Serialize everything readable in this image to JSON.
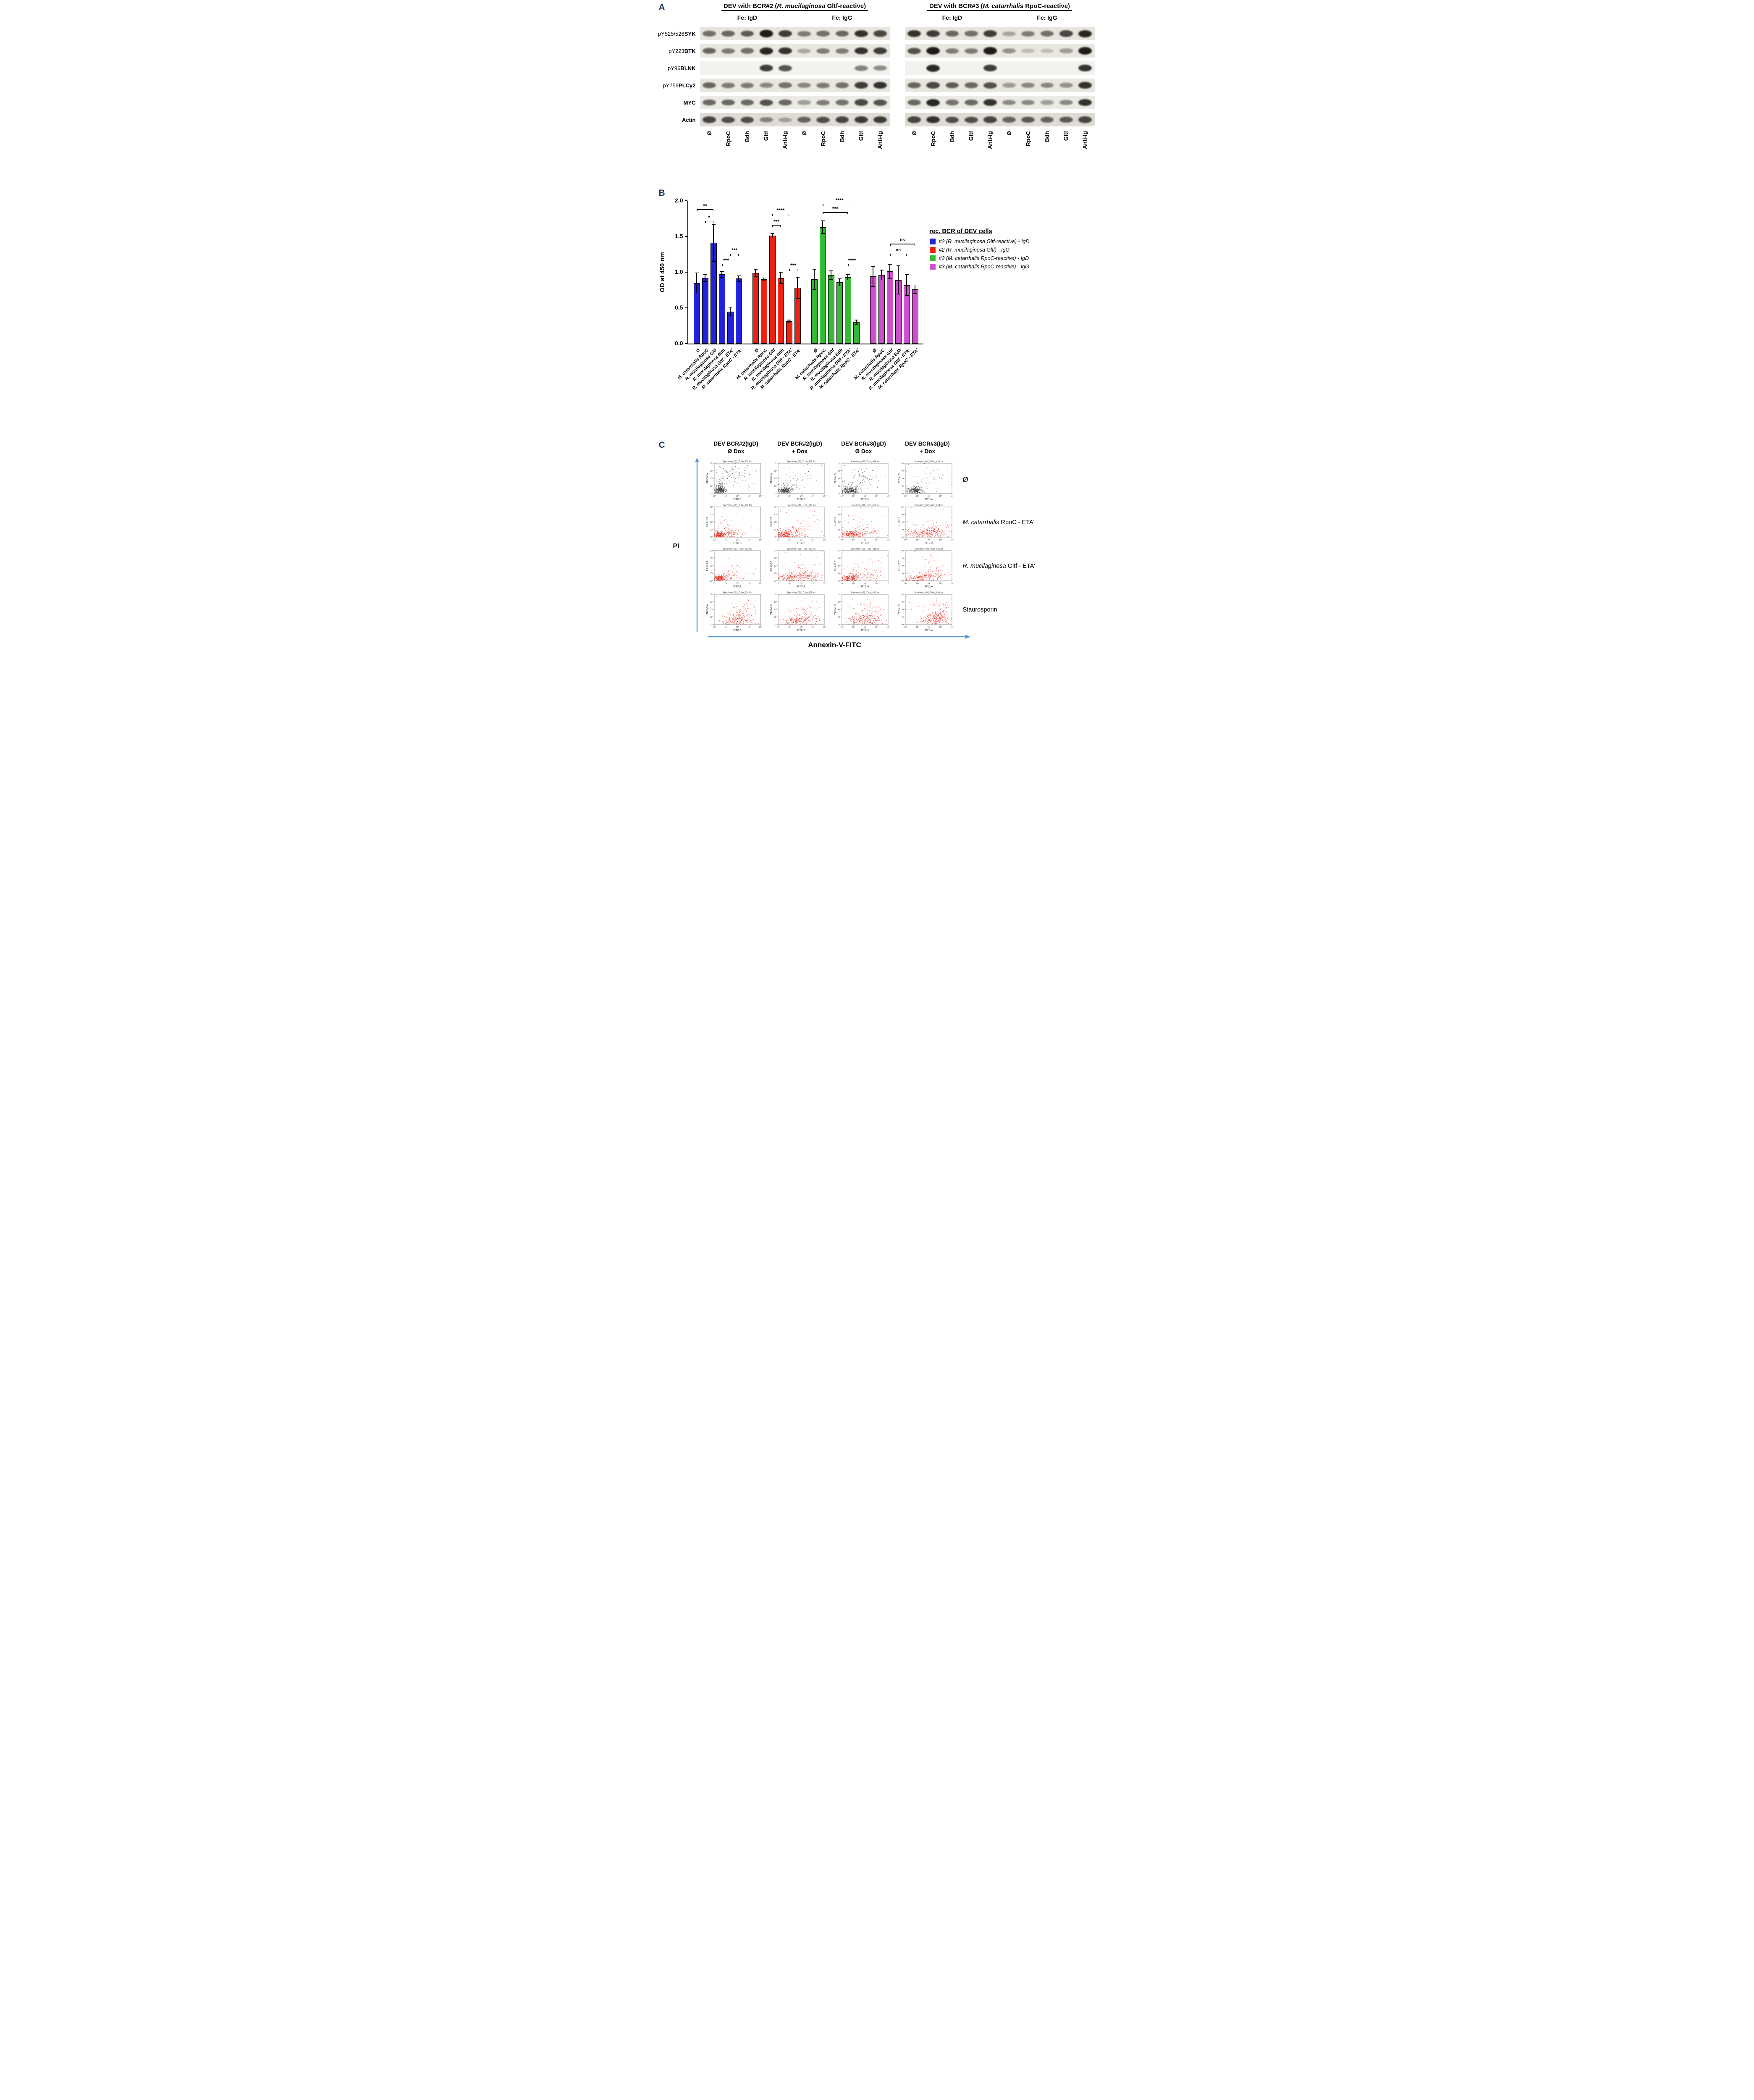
{
  "panelA": {
    "label": "A",
    "groups": [
      {
        "title_pre": "DEV with BCR#2 (",
        "title_italic": "R. mucilaginosa",
        "title_post": " Gltf-reactive)",
        "fc_labels": [
          "Fc: IgD",
          "Fc: IgG"
        ]
      },
      {
        "title_pre": "DEV with BCR#3 (",
        "title_italic": "M. catarrhalis",
        "title_post": " RpoC-reactive)",
        "fc_labels": [
          "Fc: IgD",
          "Fc: IgG"
        ]
      }
    ],
    "lane_labels": [
      "Ø",
      "RpoC",
      "Bdh",
      "Gltf",
      "Anti-Ig"
    ],
    "rows": [
      {
        "prefix": "pY525/526 ",
        "name": "SYK",
        "bg": "#e8e5df",
        "g1": [
          0.55,
          0.6,
          0.65,
          0.95,
          0.8,
          0.5,
          0.55,
          0.6,
          0.85,
          0.75
        ],
        "g2": [
          0.85,
          0.8,
          0.6,
          0.55,
          0.8,
          0.3,
          0.5,
          0.55,
          0.75,
          0.9
        ]
      },
      {
        "prefix": "pY223 ",
        "name": "BTK",
        "bg": "#eae7e1",
        "g1": [
          0.6,
          0.5,
          0.55,
          0.9,
          0.85,
          0.3,
          0.5,
          0.5,
          0.85,
          0.8
        ],
        "g2": [
          0.7,
          0.95,
          0.5,
          0.5,
          0.95,
          0.4,
          0.2,
          0.2,
          0.35,
          0.95
        ]
      },
      {
        "prefix": "pY96 ",
        "name": "BLNK",
        "bg": "#f3f2ef",
        "g1": [
          0,
          0,
          0,
          0.8,
          0.7,
          0,
          0,
          0,
          0.5,
          0.45
        ],
        "g2": [
          0,
          0.9,
          0,
          0,
          0.8,
          0,
          0,
          0,
          0,
          0.85
        ]
      },
      {
        "prefix": "pY759 ",
        "name": "PLCγ2",
        "bg": "#e9e6e0",
        "g1": [
          0.6,
          0.5,
          0.5,
          0.45,
          0.55,
          0.45,
          0.5,
          0.55,
          0.8,
          0.85
        ],
        "g2": [
          0.6,
          0.75,
          0.65,
          0.6,
          0.7,
          0.35,
          0.45,
          0.45,
          0.4,
          0.85
        ]
      },
      {
        "prefix": "",
        "name": "MYC",
        "bg": "#eceae4",
        "g1": [
          0.6,
          0.6,
          0.6,
          0.7,
          0.6,
          0.35,
          0.5,
          0.55,
          0.75,
          0.7
        ],
        "g2": [
          0.6,
          0.9,
          0.55,
          0.6,
          0.85,
          0.45,
          0.45,
          0.35,
          0.45,
          0.85
        ]
      },
      {
        "prefix": "",
        "name": "Actin",
        "bg": "#dfdcd5",
        "g1": [
          0.75,
          0.7,
          0.7,
          0.45,
          0.3,
          0.6,
          0.7,
          0.75,
          0.8,
          0.8
        ],
        "g2": [
          0.75,
          0.85,
          0.7,
          0.7,
          0.75,
          0.6,
          0.65,
          0.6,
          0.65,
          0.75
        ]
      }
    ]
  },
  "panelB": {
    "label": "B"
  },
  "panelC": {
    "label": "C"
  },
  "chart_data": [
    {
      "type": "bar",
      "title": "",
      "ylabel": "OD at 450 nm",
      "ylim": [
        0,
        2.0
      ],
      "yticks": [
        0,
        0.5,
        1.0,
        1.5,
        2.0
      ],
      "categories": [
        "Ø",
        "M. catarrhalis RpoC",
        "R. mucilaginosa Gltf",
        "R. mucilaginosa Bdh",
        "R. mucilaginosa Gltf - ETA'",
        "M. catarrhalis RpoC - ETA'"
      ],
      "legend_title": "rec. BCR  of DEV cells",
      "legend_position": "right",
      "grid": false,
      "series": [
        {
          "name": "#2 (R. mucilaginosa Gltf-reactive) - IgD",
          "color": "#2222dd",
          "values": [
            0.85,
            0.92,
            1.41,
            0.97,
            0.45,
            0.91
          ],
          "errors": [
            0.14,
            0.05,
            0.26,
            0.04,
            0.06,
            0.04
          ]
        },
        {
          "name": "#2 (R. mucilaginosa Gltf) - IgG",
          "color": "#ee2211",
          "values": [
            0.99,
            0.9,
            1.51,
            0.92,
            0.31,
            0.78
          ],
          "errors": [
            0.05,
            0.02,
            0.03,
            0.08,
            0.02,
            0.15
          ]
        },
        {
          "name": "#3 (M. catarrhalis RpoC-reactive)  - IgD",
          "color": "#33bb33",
          "values": [
            0.9,
            1.63,
            0.96,
            0.86,
            0.93,
            0.3
          ],
          "errors": [
            0.14,
            0.09,
            0.06,
            0.05,
            0.04,
            0.03
          ]
        },
        {
          "name": "#3 (M. catarrhalis RpoC-reactive)  - IgG",
          "color": "#cc4fcc",
          "values": [
            0.94,
            0.96,
            1.01,
            0.89,
            0.82,
            0.76
          ],
          "errors": [
            0.14,
            0.07,
            0.1,
            0.2,
            0.15,
            0.06
          ]
        }
      ],
      "annotations": [
        {
          "g": 0,
          "i1": 1,
          "i2": 2,
          "y": 1.72,
          "t": "*"
        },
        {
          "g": 0,
          "i1": 0,
          "i2": 2,
          "y": 1.88,
          "t": "**"
        },
        {
          "g": 0,
          "i1": 3,
          "i2": 4,
          "y": 1.12,
          "t": "***"
        },
        {
          "g": 0,
          "i1": 4,
          "i2": 5,
          "y": 1.26,
          "t": "***"
        },
        {
          "g": 1,
          "i1": 2,
          "i2": 3,
          "y": 1.66,
          "t": "***"
        },
        {
          "g": 1,
          "i1": 2,
          "i2": 4,
          "y": 1.82,
          "t": "****"
        },
        {
          "g": 1,
          "i1": 4,
          "i2": 5,
          "y": 1.05,
          "t": "***"
        },
        {
          "g": 2,
          "i1": 1,
          "i2": 4,
          "y": 1.84,
          "t": "***"
        },
        {
          "g": 2,
          "i1": 1,
          "i2": 5,
          "y": 1.96,
          "t": "****"
        },
        {
          "g": 2,
          "i1": 4,
          "i2": 5,
          "y": 1.12,
          "t": "****"
        },
        {
          "g": 3,
          "i1": 2,
          "i2": 4,
          "y": 1.26,
          "t": "ns"
        },
        {
          "g": 3,
          "i1": 2,
          "i2": 5,
          "y": 1.4,
          "t": "ns"
        }
      ]
    },
    {
      "type": "scatter",
      "col_headers": [
        {
          "l1": "DEV BCR#2(IgD)",
          "l2": "Ø Dox"
        },
        {
          "l1": "DEV BCR#2(IgD)",
          "l2": "+ Dox"
        },
        {
          "l1": "DEV BCR#3(IgD)",
          "l2": "Ø Dox"
        },
        {
          "l1": "DEV BCR#3(IgD)",
          "l2": "+ Dox"
        }
      ],
      "row_labels": [
        {
          "it": "",
          "rest": "Ø"
        },
        {
          "it": "M. catarrhalis",
          "rest": " RpoC - ETA'"
        },
        {
          "it": "R. mucilaginosa",
          "rest": " Gltf - ETA'"
        },
        {
          "it": "",
          "rest": "Staurosporin"
        }
      ],
      "x_axis_label": "Annexin-V-FITC",
      "y_axis_label": "PI",
      "sub_x_label": "FITC-A",
      "sub_y_label": "PE-Cy7-A",
      "tick_labels": [
        "10⁰",
        "10¹",
        "10²",
        "10³",
        "10⁴"
      ],
      "arrow_color": "#5b9bd5",
      "plots": [
        {
          "title": "Specimen_001_Tube_001.fcs",
          "color": "#3a3a3a",
          "clusters": [
            [
              0.13,
              0.1,
              0.06,
              0.06,
              320
            ],
            [
              0.14,
              0.32,
              0.06,
              0.13,
              60
            ],
            [
              0.45,
              0.7,
              0.18,
              0.13,
              70
            ],
            [
              0.52,
              0.42,
              0.24,
              0.18,
              30
            ]
          ]
        },
        {
          "title": "Specimen_001_Tube_005.fcs",
          "color": "#3a3a3a",
          "clusters": [
            [
              0.15,
              0.1,
              0.07,
              0.06,
              300
            ],
            [
              0.3,
              0.25,
              0.12,
              0.12,
              50
            ],
            [
              0.55,
              0.6,
              0.2,
              0.15,
              25
            ]
          ]
        },
        {
          "title": "Specimen_001_Tube_009.fcs",
          "color": "#3a3a3a",
          "clusters": [
            [
              0.18,
              0.1,
              0.08,
              0.06,
              300
            ],
            [
              0.45,
              0.55,
              0.18,
              0.17,
              60
            ],
            [
              0.3,
              0.3,
              0.15,
              0.1,
              40
            ]
          ]
        },
        {
          "title": "Specimen_001_Tube_013.fcs",
          "color": "#3a3a3a",
          "clusters": [
            [
              0.2,
              0.1,
              0.08,
              0.06,
              300
            ],
            [
              0.5,
              0.45,
              0.2,
              0.2,
              40
            ]
          ]
        },
        {
          "title": "Specimen_001_Tube_002.fcs",
          "color": "#e03226",
          "clusters": [
            [
              0.12,
              0.08,
              0.06,
              0.05,
              260
            ],
            [
              0.35,
              0.12,
              0.15,
              0.07,
              120
            ],
            [
              0.3,
              0.35,
              0.15,
              0.15,
              40
            ]
          ]
        },
        {
          "title": "Specimen_001_Tube_006.fcs",
          "color": "#e03226",
          "clusters": [
            [
              0.15,
              0.1,
              0.08,
              0.06,
              220
            ],
            [
              0.45,
              0.15,
              0.18,
              0.1,
              110
            ],
            [
              0.6,
              0.45,
              0.15,
              0.15,
              30
            ]
          ]
        },
        {
          "title": "Specimen_001_Tube_010.fcs",
          "color": "#e03226",
          "clusters": [
            [
              0.2,
              0.1,
              0.1,
              0.06,
              240
            ],
            [
              0.5,
              0.15,
              0.18,
              0.08,
              100
            ],
            [
              0.4,
              0.4,
              0.2,
              0.15,
              30
            ]
          ]
        },
        {
          "title": "Specimen_001_Tube_014.fcs",
          "color": "#e03226",
          "clusters": [
            [
              0.3,
              0.12,
              0.15,
              0.08,
              150
            ],
            [
              0.65,
              0.15,
              0.15,
              0.1,
              180
            ],
            [
              0.6,
              0.4,
              0.2,
              0.15,
              40
            ]
          ]
        },
        {
          "title": "Specimen_001_Tube_003.fcs",
          "color": "#e03226",
          "clusters": [
            [
              0.12,
              0.09,
              0.06,
              0.05,
              260
            ],
            [
              0.3,
              0.15,
              0.12,
              0.08,
              70
            ],
            [
              0.35,
              0.4,
              0.15,
              0.15,
              30
            ]
          ]
        },
        {
          "title": "Specimen_001_Tube_007.fcs",
          "color": "#e03226",
          "clusters": [
            [
              0.2,
              0.1,
              0.1,
              0.07,
              100
            ],
            [
              0.55,
              0.14,
              0.2,
              0.09,
              230
            ],
            [
              0.5,
              0.4,
              0.2,
              0.15,
              40
            ]
          ]
        },
        {
          "title": "Specimen_001_Tube_011.fcs",
          "color": "#e03226",
          "clusters": [
            [
              0.18,
              0.1,
              0.09,
              0.06,
              240
            ],
            [
              0.5,
              0.15,
              0.18,
              0.1,
              90
            ],
            [
              0.4,
              0.45,
              0.18,
              0.15,
              30
            ]
          ]
        },
        {
          "title": "Specimen_001_Tube_015.fcs",
          "color": "#e03226",
          "clusters": [
            [
              0.25,
              0.1,
              0.12,
              0.07,
              140
            ],
            [
              0.55,
              0.15,
              0.18,
              0.1,
              160
            ],
            [
              0.5,
              0.45,
              0.18,
              0.15,
              35
            ]
          ]
        },
        {
          "title": "Specimen_001_Tube_004.fcs",
          "color": "#e03226",
          "clusters": [
            [
              0.55,
              0.18,
              0.15,
              0.1,
              230
            ],
            [
              0.7,
              0.5,
              0.12,
              0.15,
              60
            ],
            [
              0.3,
              0.1,
              0.12,
              0.06,
              50
            ]
          ]
        },
        {
          "title": "Specimen_001_Tube_008.fcs",
          "color": "#e03226",
          "clusters": [
            [
              0.5,
              0.15,
              0.18,
              0.1,
              220
            ],
            [
              0.3,
              0.1,
              0.12,
              0.06,
              60
            ],
            [
              0.6,
              0.45,
              0.15,
              0.15,
              40
            ]
          ]
        },
        {
          "title": "Specimen_001_Tube_012.fcs",
          "color": "#e03226",
          "clusters": [
            [
              0.55,
              0.18,
              0.18,
              0.1,
              240
            ],
            [
              0.35,
              0.1,
              0.12,
              0.06,
              50
            ],
            [
              0.65,
              0.5,
              0.12,
              0.15,
              50
            ]
          ]
        },
        {
          "title": "Specimen_001_Tube_016.fcs",
          "color": "#e03226",
          "clusters": [
            [
              0.7,
              0.2,
              0.12,
              0.1,
              260
            ],
            [
              0.75,
              0.55,
              0.1,
              0.15,
              70
            ],
            [
              0.45,
              0.12,
              0.12,
              0.07,
              60
            ]
          ]
        }
      ]
    }
  ]
}
